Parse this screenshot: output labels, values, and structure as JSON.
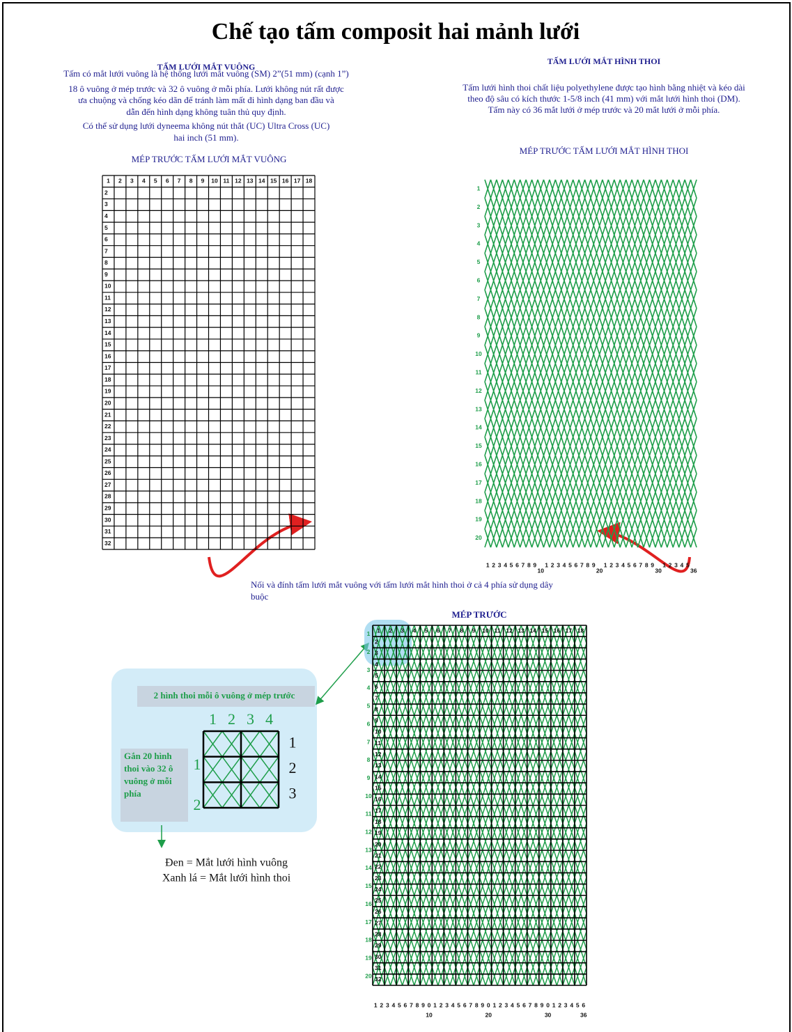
{
  "title": "Chế tạo tấm composit hai mảnh lưới",
  "square_section": {
    "heading": "TẤM LƯỚI MẮT VUÔNG",
    "description": [
      "Tấm có mắt lưới vuông là hệ thống lưới mắt vuông (SM) 2”(51 mm) (cạnh 1”)",
      "18 ô vuông ở mép trước và 32 ô vuông ở mỗi phía. Lưới không nút rất được",
      "ưa chuộng và chống kéo dãn để tránh làm mất đi hình dạng ban đầu và",
      "dẫn đến hình dạng không tuân thủ quy định.",
      "Có thể sử dụng lưới dyneema không nút thắt (UC) Ultra Cross (UC)",
      "hai inch (51 mm)."
    ],
    "label": "MÉP TRƯỚC TẤM LƯỚI MẮT VUÔNG",
    "columns": [
      1,
      2,
      3,
      4,
      5,
      6,
      7,
      8,
      9,
      10,
      11,
      12,
      13,
      14,
      15,
      16,
      17,
      18
    ],
    "rows": [
      2,
      3,
      4,
      5,
      6,
      7,
      8,
      9,
      10,
      11,
      12,
      13,
      14,
      15,
      16,
      17,
      18,
      19,
      20,
      21,
      22,
      23,
      24,
      25,
      26,
      27,
      28,
      29,
      30,
      31,
      32
    ]
  },
  "diamond_section": {
    "heading": "TẤM LƯỚI MẮT HÌNH THOI",
    "description": [
      "Tấm lưới hình thoi chất liệu polyethylene được tạo hình bằng nhiệt và kéo dài",
      "theo độ sâu có kích thước 1-5/8 inch (41 mm) với mắt lưới hình thoi (DM).",
      "Tấm này có 36 mắt lưới ở mép trước và 20 mắt lưới ở mỗi phía."
    ],
    "label": "MÉP TRƯỚC TẤM LƯỚI MẮT HÌNH THOI",
    "rows": [
      1,
      2,
      3,
      4,
      5,
      6,
      7,
      8,
      9,
      10,
      11,
      12,
      13,
      14,
      15,
      16,
      17,
      18,
      19,
      20
    ],
    "columns": [
      1,
      2,
      3,
      4,
      5,
      6,
      7,
      8,
      9,
      10,
      1,
      2,
      3,
      4,
      5,
      6,
      7,
      8,
      9,
      20,
      1,
      2,
      3,
      4,
      5,
      6,
      7,
      8,
      9,
      30,
      1,
      2,
      3,
      4,
      5,
      36
    ]
  },
  "connector_note": [
    "Nối và đính tấm lưới mắt vuông với tấm lưới mắt hình thoi ở cả 4 phía sử dụng dây",
    "buộc"
  ],
  "combined_panel": {
    "label": "MÉP TRƯỚC",
    "columns": [
      1,
      2,
      3,
      4,
      5,
      6,
      7,
      8,
      9,
      10,
      11,
      12,
      13,
      14,
      15,
      16,
      17,
      18
    ],
    "inner_rows": [
      2,
      3,
      4,
      5,
      6,
      7,
      8,
      9,
      10,
      11,
      12,
      13,
      14,
      15,
      16,
      17,
      18,
      19,
      20,
      21,
      22,
      23,
      24,
      25,
      26,
      27,
      28,
      29,
      30,
      31,
      32
    ],
    "rows": [
      1,
      2,
      3,
      4,
      5,
      6,
      7,
      8,
      9,
      10,
      11,
      12,
      13,
      14,
      15,
      16,
      17,
      18,
      19,
      20
    ],
    "bottom_digits": [
      1,
      2,
      3,
      4,
      5,
      6,
      7,
      8,
      9,
      0,
      1,
      2,
      3,
      4,
      5,
      6,
      7,
      8,
      9,
      0,
      1,
      2,
      3,
      4,
      5,
      6,
      7,
      8,
      9,
      0,
      1,
      2,
      3,
      4,
      5,
      6
    ],
    "bottom_tens": [
      10,
      20,
      30,
      36
    ]
  },
  "inset": {
    "heading": "2 hình thoi mỗi ô vuông ở mép trước",
    "top_numbers": [
      1,
      2,
      3,
      4
    ],
    "right_numbers": [
      1,
      2,
      3
    ],
    "left_numbers": [
      1,
      2
    ],
    "side_note": [
      "Gắn 20 hình",
      "thoi vào 32 ô",
      "vuông ở mỗi",
      "phía"
    ]
  },
  "legend": [
    "Đen = Mắt lưới hình vuông",
    "Xanh lá = Mắt lưới hình thoi"
  ]
}
